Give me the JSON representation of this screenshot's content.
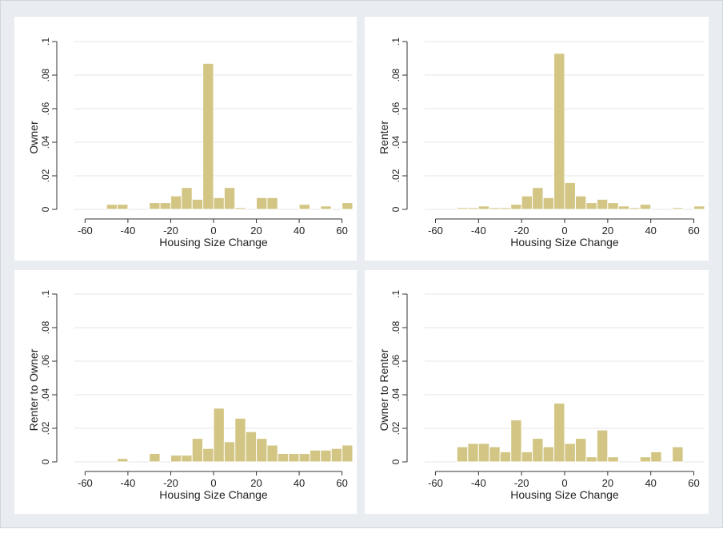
{
  "chart_data": [
    {
      "type": "bar",
      "xlabel": "Housing Size Change",
      "ylabel": "Owner",
      "xlim": [
        -65,
        65
      ],
      "ylim": [
        0,
        0.1
      ],
      "xticks": [
        "-60",
        "-40",
        "-20",
        "0",
        "20",
        "40",
        "60"
      ],
      "yticks": [
        "0",
        ".02",
        ".04",
        ".06",
        ".08",
        ".1"
      ],
      "bin_width": 5,
      "bin_starts": [
        -50,
        -45,
        -40,
        -35,
        -30,
        -25,
        -20,
        -15,
        -10,
        -5,
        0,
        5,
        10,
        15,
        20,
        25,
        30,
        35,
        40,
        45,
        50,
        55,
        60
      ],
      "values": [
        0.003,
        0.003,
        0.0,
        0.0,
        0.004,
        0.004,
        0.008,
        0.013,
        0.006,
        0.087,
        0.007,
        0.013,
        0.001,
        0.0,
        0.007,
        0.007,
        0.0,
        0.0,
        0.003,
        0.0,
        0.002,
        0.0,
        0.004
      ]
    },
    {
      "type": "bar",
      "xlabel": "Housing Size Change",
      "ylabel": "Renter",
      "xlim": [
        -65,
        65
      ],
      "ylim": [
        0,
        0.1
      ],
      "xticks": [
        "-60",
        "-40",
        "-20",
        "0",
        "20",
        "40",
        "60"
      ],
      "yticks": [
        "0",
        ".02",
        ".04",
        ".06",
        ".08",
        ".1"
      ],
      "bin_width": 5,
      "bin_starts": [
        -50,
        -45,
        -40,
        -35,
        -30,
        -25,
        -20,
        -15,
        -10,
        -5,
        0,
        5,
        10,
        15,
        20,
        25,
        30,
        35,
        40,
        45,
        50,
        55,
        60
      ],
      "values": [
        0.001,
        0.001,
        0.002,
        0.001,
        0.001,
        0.003,
        0.008,
        0.013,
        0.007,
        0.093,
        0.016,
        0.008,
        0.004,
        0.006,
        0.004,
        0.002,
        0.001,
        0.003,
        0.0,
        0.0,
        0.001,
        0.0,
        0.002
      ]
    },
    {
      "type": "bar",
      "xlabel": "Housing Size Change",
      "ylabel": "Renter to Owner",
      "xlim": [
        -65,
        65
      ],
      "ylim": [
        0,
        0.1
      ],
      "xticks": [
        "-60",
        "-40",
        "-20",
        "0",
        "20",
        "40",
        "60"
      ],
      "yticks": [
        "0",
        ".02",
        ".04",
        ".06",
        ".08",
        ".1"
      ],
      "bin_width": 5,
      "bin_starts": [
        -45,
        -40,
        -35,
        -30,
        -25,
        -20,
        -15,
        -10,
        -5,
        0,
        5,
        10,
        15,
        20,
        25,
        30,
        35,
        40,
        45,
        50,
        55,
        60
      ],
      "values": [
        0.002,
        0.0,
        0.0,
        0.005,
        0.0,
        0.004,
        0.004,
        0.014,
        0.008,
        0.032,
        0.012,
        0.026,
        0.018,
        0.014,
        0.01,
        0.005,
        0.005,
        0.005,
        0.007,
        0.007,
        0.008,
        0.01
      ]
    },
    {
      "type": "bar",
      "xlabel": "Housing Size Change",
      "ylabel": "Owner to Renter",
      "xlim": [
        -65,
        65
      ],
      "ylim": [
        0,
        0.1
      ],
      "xticks": [
        "-60",
        "-40",
        "-20",
        "0",
        "20",
        "40",
        "60"
      ],
      "yticks": [
        "0",
        ".02",
        ".04",
        ".06",
        ".08",
        ".1"
      ],
      "bin_width": 5,
      "bin_starts": [
        -50,
        -45,
        -40,
        -35,
        -30,
        -25,
        -20,
        -15,
        -10,
        -5,
        0,
        5,
        10,
        15,
        20,
        25,
        30,
        35,
        40,
        45,
        50
      ],
      "values": [
        0.009,
        0.011,
        0.011,
        0.009,
        0.006,
        0.025,
        0.006,
        0.014,
        0.009,
        0.035,
        0.011,
        0.014,
        0.003,
        0.019,
        0.003,
        0.0,
        0.0,
        0.003,
        0.006,
        0.0,
        0.009
      ]
    }
  ],
  "colors": {
    "bar_fill": "#d3c684",
    "bar_stroke": "#ffffff",
    "axis": "#333333",
    "grid": "#e6e6e6",
    "panel_bg": "#ffffff"
  }
}
